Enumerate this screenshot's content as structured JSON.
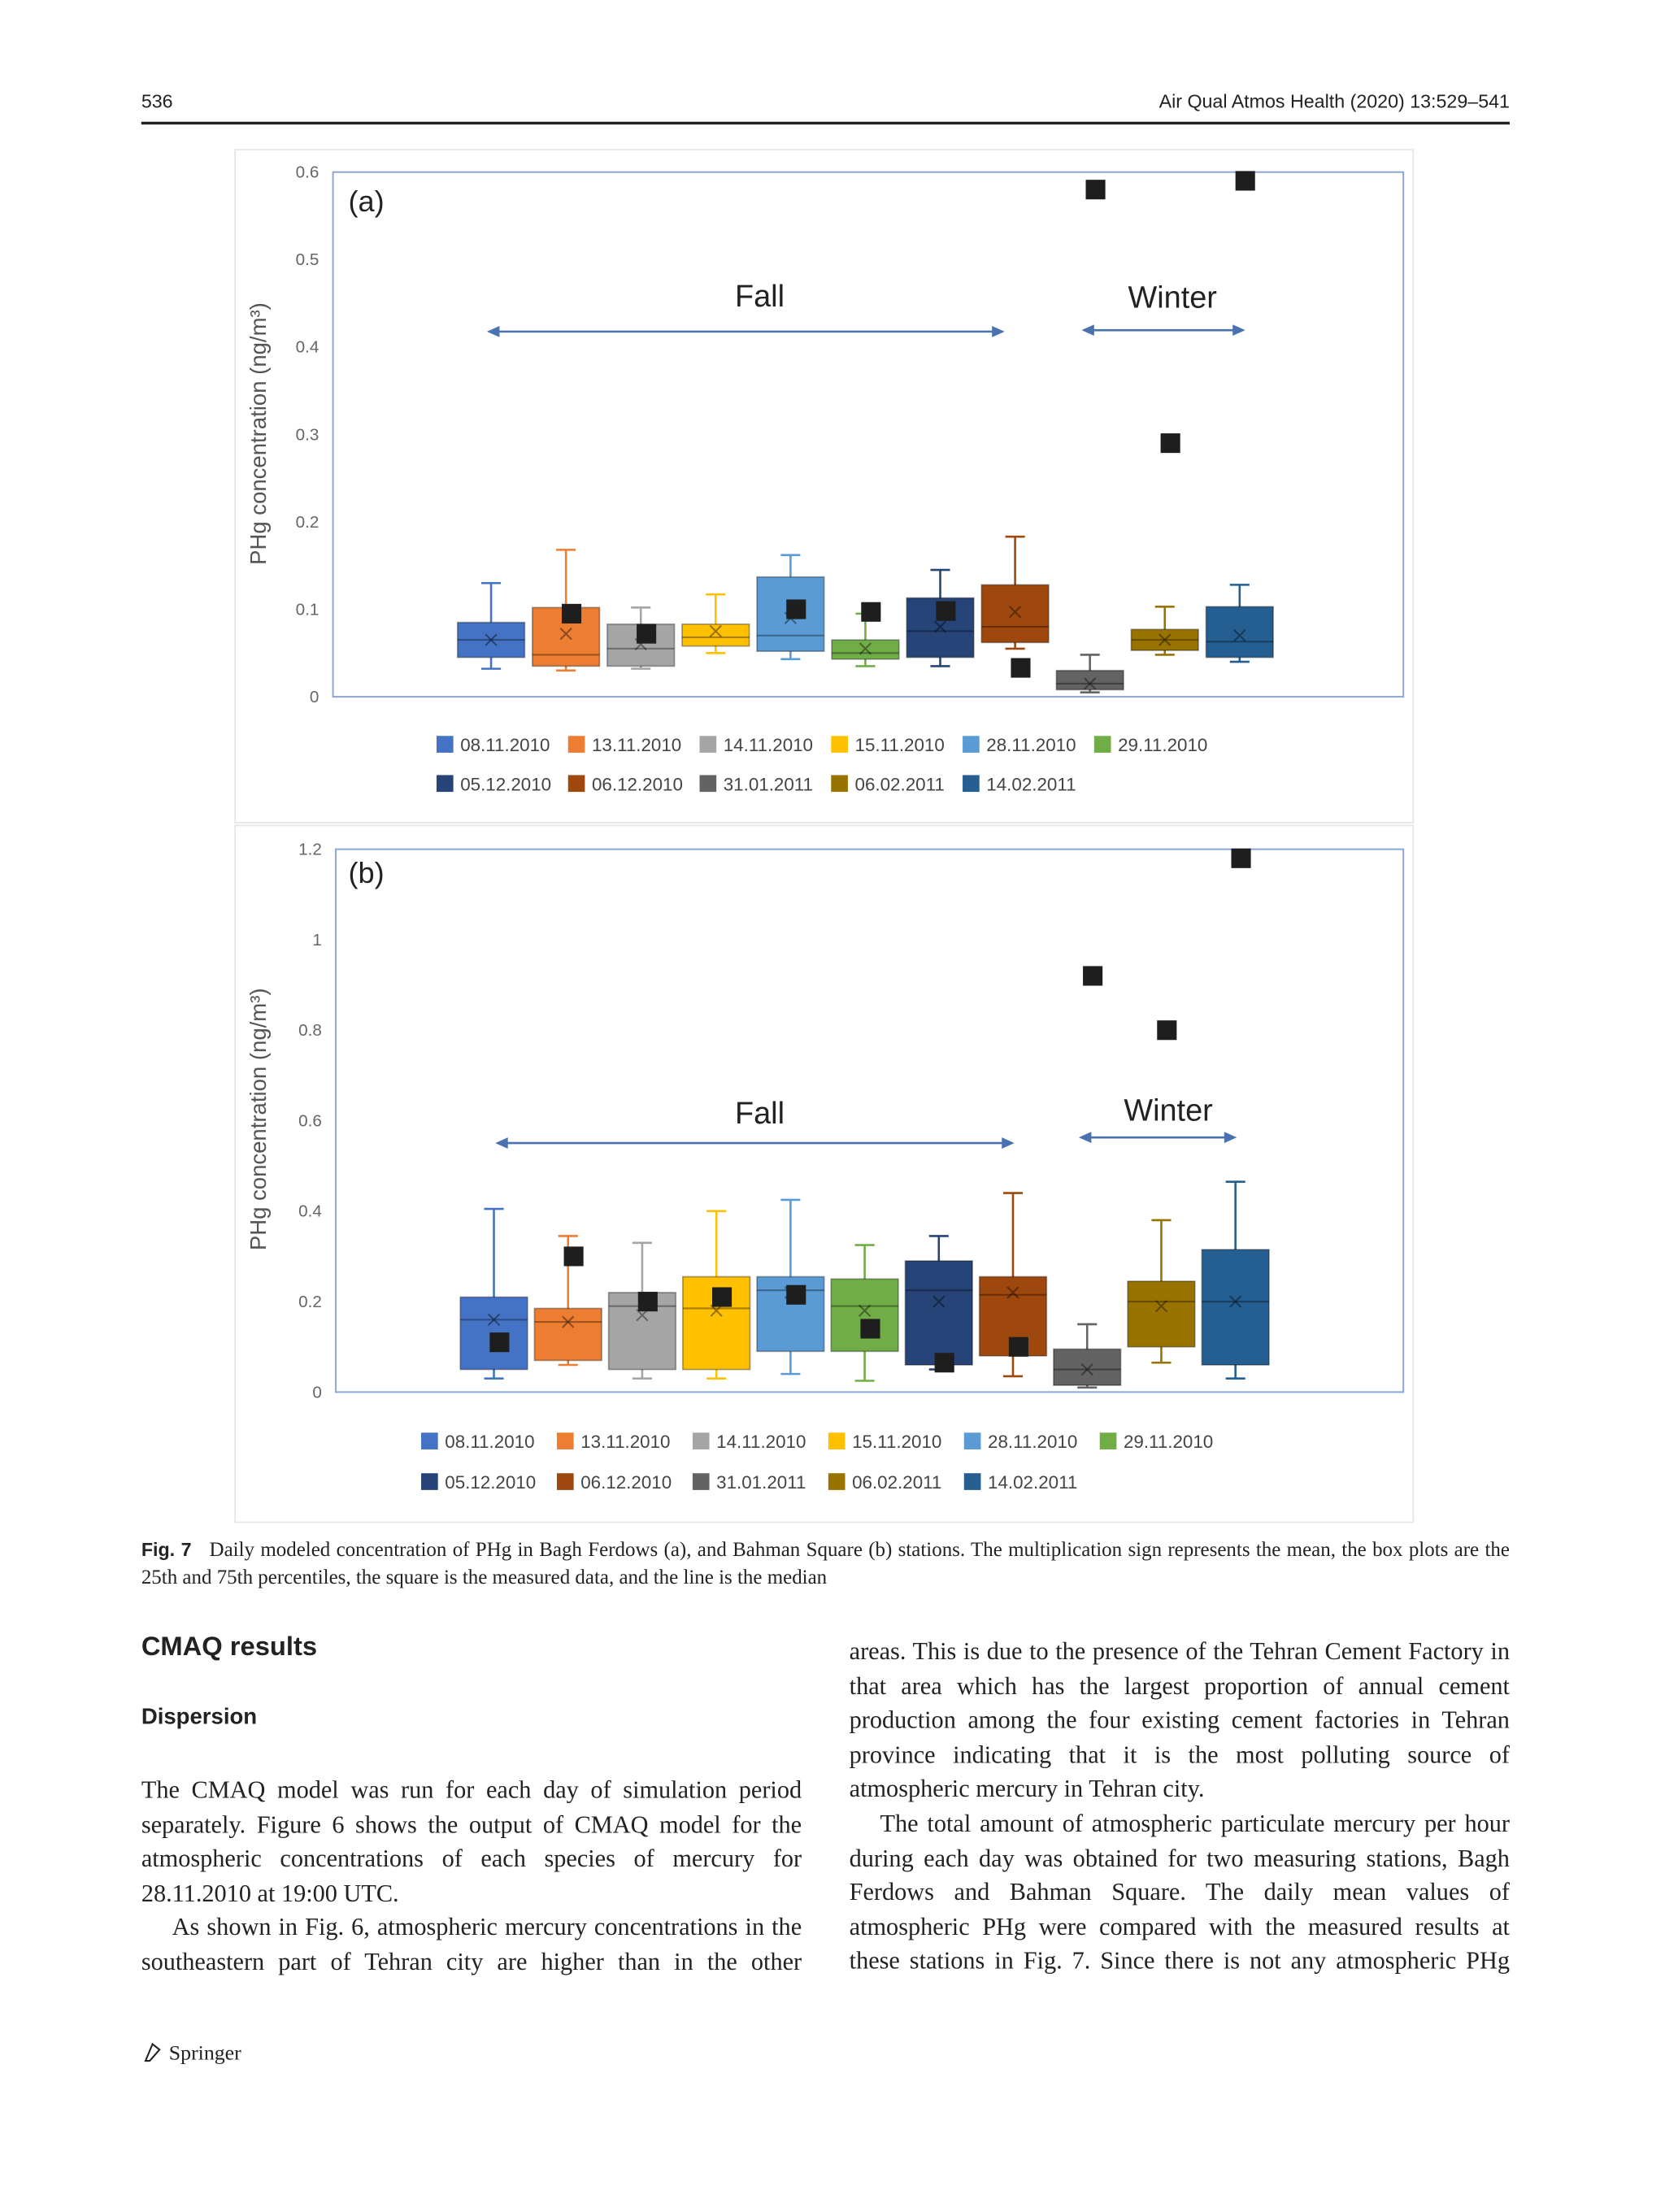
{
  "header": {
    "page": "536",
    "journal": "Air Qual Atmos Health (2020) 13:529–541"
  },
  "chart_data": [
    {
      "type": "box",
      "annotations": [
        "(a)",
        "Fall",
        "Winter"
      ],
      "ylabel": "PHg concentration (ng/m³)",
      "ylim": [
        0,
        0.6
      ],
      "yticks": [
        0,
        0.1,
        0.2,
        0.3,
        0.4,
        0.5,
        0.6
      ],
      "series": [
        {
          "name": "08.11.2010",
          "color": "#4472c4",
          "whislo": 0.032,
          "q1": 0.045,
          "med": 0.065,
          "q3": 0.085,
          "whishi": 0.13,
          "mean": 0.065,
          "measured": null
        },
        {
          "name": "13.11.2010",
          "color": "#ed7d31",
          "whislo": 0.03,
          "q1": 0.035,
          "med": 0.048,
          "q3": 0.102,
          "whishi": 0.168,
          "mean": 0.072,
          "measured": 0.095
        },
        {
          "name": "14.11.2010",
          "color": "#a5a5a5",
          "whislo": 0.032,
          "q1": 0.035,
          "med": 0.055,
          "q3": 0.083,
          "whishi": 0.102,
          "mean": 0.06,
          "measured": 0.072
        },
        {
          "name": "15.11.2010",
          "color": "#ffc000",
          "whislo": 0.05,
          "q1": 0.058,
          "med": 0.068,
          "q3": 0.083,
          "whishi": 0.117,
          "mean": 0.075,
          "measured": null
        },
        {
          "name": "28.11.2010",
          "color": "#5b9bd5",
          "whislo": 0.043,
          "q1": 0.052,
          "med": 0.07,
          "q3": 0.137,
          "whishi": 0.162,
          "mean": 0.09,
          "measured": 0.1
        },
        {
          "name": "29.11.2010",
          "color": "#70ad47",
          "whislo": 0.035,
          "q1": 0.043,
          "med": 0.05,
          "q3": 0.065,
          "whishi": 0.095,
          "mean": 0.055,
          "measured": 0.097
        },
        {
          "name": "05.12.2010",
          "color": "#264478",
          "whislo": 0.035,
          "q1": 0.045,
          "med": 0.075,
          "q3": 0.113,
          "whishi": 0.145,
          "mean": 0.08,
          "measured": 0.098
        },
        {
          "name": "06.12.2010",
          "color": "#9e480e",
          "whislo": 0.055,
          "q1": 0.062,
          "med": 0.08,
          "q3": 0.128,
          "whishi": 0.183,
          "mean": 0.097,
          "measured": 0.033
        },
        {
          "name": "31.01.2011",
          "color": "#636363",
          "whislo": 0.005,
          "q1": 0.008,
          "med": 0.015,
          "q3": 0.03,
          "whishi": 0.048,
          "mean": 0.015,
          "measured": 0.58
        },
        {
          "name": "06.02.2011",
          "color": "#997300",
          "whislo": 0.048,
          "q1": 0.053,
          "med": 0.065,
          "q3": 0.077,
          "whishi": 0.103,
          "mean": 0.065,
          "measured": 0.29
        },
        {
          "name": "14.02.2011",
          "color": "#255e91",
          "whislo": 0.04,
          "q1": 0.045,
          "med": 0.063,
          "q3": 0.103,
          "whishi": 0.128,
          "mean": 0.07,
          "measured": 0.59
        }
      ]
    },
    {
      "type": "box",
      "annotations": [
        "(b)",
        "Fall",
        "Winter"
      ],
      "ylabel": "PHg concentration (ng/m³)",
      "ylim": [
        0,
        1.2
      ],
      "yticks": [
        0,
        0.2,
        0.4,
        0.6,
        0.8,
        1,
        1.2
      ],
      "series": [
        {
          "name": "08.11.2010",
          "color": "#4472c4",
          "whislo": 0.03,
          "q1": 0.05,
          "med": 0.16,
          "q3": 0.21,
          "whishi": 0.405,
          "mean": 0.16,
          "measured": 0.11
        },
        {
          "name": "13.11.2010",
          "color": "#ed7d31",
          "whislo": 0.06,
          "q1": 0.07,
          "med": 0.155,
          "q3": 0.185,
          "whishi": 0.345,
          "mean": 0.155,
          "measured": 0.3
        },
        {
          "name": "14.11.2010",
          "color": "#a5a5a5",
          "whislo": 0.03,
          "q1": 0.05,
          "med": 0.19,
          "q3": 0.22,
          "whishi": 0.33,
          "mean": 0.17,
          "measured": 0.2
        },
        {
          "name": "15.11.2010",
          "color": "#ffc000",
          "whislo": 0.03,
          "q1": 0.05,
          "med": 0.185,
          "q3": 0.255,
          "whishi": 0.4,
          "mean": 0.18,
          "measured": 0.21
        },
        {
          "name": "28.11.2010",
          "color": "#5b9bd5",
          "whislo": 0.04,
          "q1": 0.09,
          "med": 0.225,
          "q3": 0.255,
          "whishi": 0.425,
          "mean": 0.22,
          "measured": 0.215
        },
        {
          "name": "29.11.2010",
          "color": "#70ad47",
          "whislo": 0.025,
          "q1": 0.09,
          "med": 0.19,
          "q3": 0.25,
          "whishi": 0.325,
          "mean": 0.18,
          "measured": 0.14
        },
        {
          "name": "05.12.2010",
          "color": "#264478",
          "whislo": 0.05,
          "q1": 0.06,
          "med": 0.225,
          "q3": 0.29,
          "whishi": 0.345,
          "mean": 0.2,
          "measured": 0.065
        },
        {
          "name": "06.12.2010",
          "color": "#9e480e",
          "whislo": 0.035,
          "q1": 0.08,
          "med": 0.215,
          "q3": 0.255,
          "whishi": 0.44,
          "mean": 0.22,
          "measured": 0.1
        },
        {
          "name": "31.01.2011",
          "color": "#636363",
          "whislo": 0.01,
          "q1": 0.015,
          "med": 0.05,
          "q3": 0.095,
          "whishi": 0.15,
          "mean": 0.05,
          "measured": 0.92
        },
        {
          "name": "06.02.2011",
          "color": "#997300",
          "whislo": 0.065,
          "q1": 0.1,
          "med": 0.2,
          "q3": 0.245,
          "whishi": 0.38,
          "mean": 0.19,
          "measured": 0.8
        },
        {
          "name": "14.02.2011",
          "color": "#255e91",
          "whislo": 0.03,
          "q1": 0.06,
          "med": 0.2,
          "q3": 0.315,
          "whishi": 0.465,
          "mean": 0.2,
          "measured": 1.18
        }
      ]
    }
  ],
  "caption": {
    "label": "Fig. 7",
    "text": "Daily modeled concentration of PHg in Bagh Ferdows (a), and Bahman Square (b) stations. The multiplication sign represents the mean, the box plots are the 25th and 75th percentiles, the square is the measured data, and the line is the median"
  },
  "section": {
    "heading": "CMAQ results",
    "subheading": "Dispersion",
    "paragraphs": [
      "The CMAQ model was run for each day of simulation period separately. Figure 6 shows the output of CMAQ model for the atmospheric concentrations of each species of mercury for 28.11.2010 at 19:00 UTC.",
      "As shown in Fig. 6, atmospheric mercury concentrations in the southeastern part of Tehran city are higher than in the other",
      "areas. This is due to the presence of the Tehran Cement Factory in that area which has the largest proportion of annual cement production among the four existing cement factories in Tehran province indicating that it is the most polluting source of atmospheric mercury in Tehran city.",
      "The total amount of atmospheric particulate mercury per hour during each day was obtained for two measuring stations, Bagh Ferdows and Bahman Square. The daily mean values of atmospheric PHg were compared with the measured results at these stations in Fig. 7. Since there is not any atmospheric PHg"
    ]
  },
  "footer": {
    "publisher": "Springer"
  }
}
